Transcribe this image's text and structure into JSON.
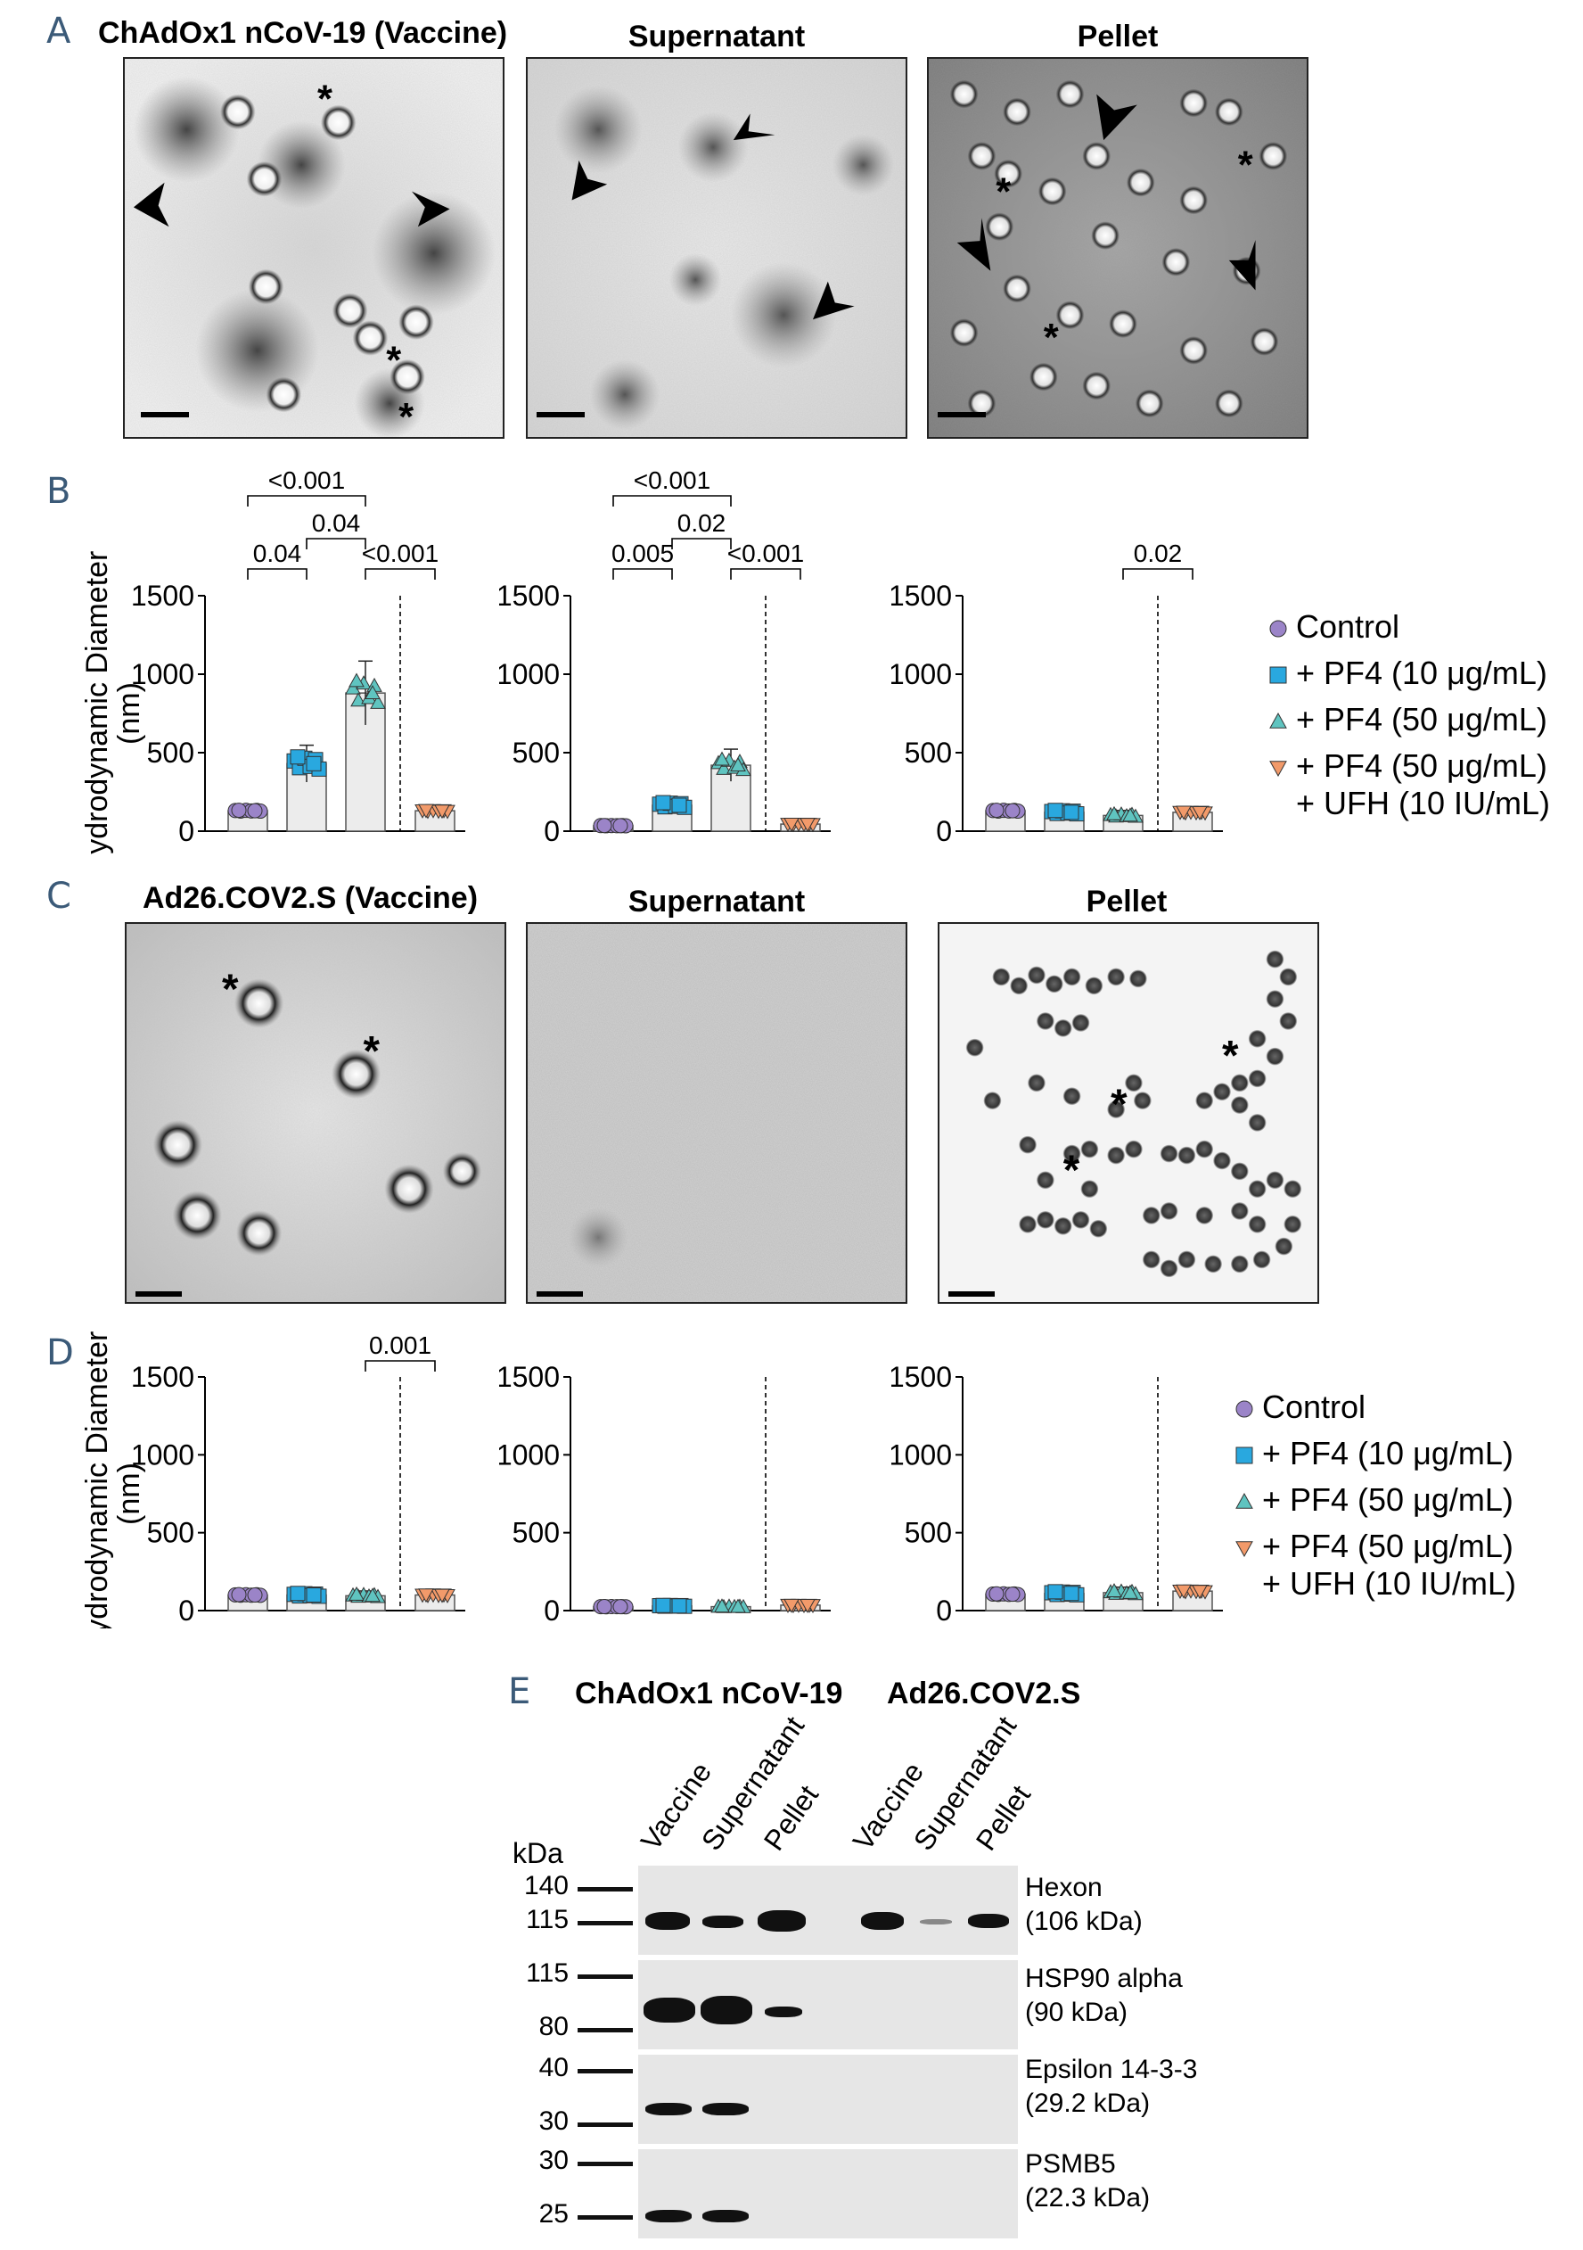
{
  "panels": {
    "A": {
      "letter": "A",
      "titles": [
        "ChAdOx1 nCoV-19 (Vaccine)",
        "Supernatant",
        "Pellet"
      ]
    },
    "B": {
      "letter": "B"
    },
    "C": {
      "letter": "C",
      "titles": [
        "Ad26.COV2.S (Vaccine)",
        "Supernatant",
        "Pellet"
      ]
    },
    "D": {
      "letter": "D"
    },
    "E": {
      "letter": "E",
      "groups": [
        "ChAdOx1 nCoV-19",
        "Ad26.COV2.S"
      ],
      "lanes": [
        "Vaccine",
        "Supernatant",
        "Pellet"
      ],
      "kda_label": "kDa",
      "blots": [
        {
          "markers": [
            "140",
            "115"
          ],
          "protein": "Hexon",
          "mass": "(106 kDa)"
        },
        {
          "markers": [
            "115",
            "80"
          ],
          "protein": "HSP90 alpha",
          "mass": "(90 kDa)"
        },
        {
          "markers": [
            "40",
            "30"
          ],
          "protein": "Epsilon 14-3-3",
          "mass": "(29.2 kDa)"
        },
        {
          "markers": [
            "30",
            "25"
          ],
          "protein": "PSMB5",
          "mass": "(22.3 kDa)"
        }
      ]
    }
  },
  "annotations": {
    "asterisk": "*"
  },
  "legend": {
    "entries": [
      {
        "label": "Control",
        "color": "#9b84c8",
        "marker": "circle"
      },
      {
        "label": "+ PF4 (10 μg/mL)",
        "color": "#29a8df",
        "marker": "square"
      },
      {
        "label": "+ PF4 (50 μg/mL)",
        "color": "#5fc4c0",
        "marker": "triangle"
      },
      {
        "label": "+ PF4 (50 μg/mL)",
        "label2": "+ UFH (10 IU/mL)",
        "color": "#f29a6a",
        "marker": "triangle-down"
      }
    ]
  },
  "chart_data": [
    {
      "id": "B-vaccine",
      "type": "bar",
      "ylabel": "Hydrodynamic Diameter (nm)",
      "ylim": [
        0,
        1500
      ],
      "yticks": [
        0,
        500,
        1000,
        1500
      ],
      "categories": [
        "Control",
        "+ PF4 (10 μg/mL)",
        "+ PF4 (50 μg/mL)",
        "+ PF4 (50 μg/mL) + UFH (10 IU/mL)"
      ],
      "values": [
        130,
        430,
        880,
        130
      ],
      "brackets": [
        {
          "from": 0,
          "to": 1,
          "label": "0.04"
        },
        {
          "from": 1,
          "to": 2,
          "label": "0.04"
        },
        {
          "from": 0,
          "to": 2,
          "label": "<0.001"
        },
        {
          "from": 2,
          "to": 3,
          "label": "<0.001"
        }
      ]
    },
    {
      "id": "B-supernatant",
      "type": "bar",
      "ylim": [
        0,
        1500
      ],
      "yticks": [
        0,
        500,
        1000,
        1500
      ],
      "categories": [
        "Control",
        "+ PF4 (10 μg/mL)",
        "+ PF4 (50 μg/mL)",
        "+ PF4 (50 μg/mL) + UFH (10 IU/mL)"
      ],
      "values": [
        35,
        165,
        420,
        45
      ],
      "brackets": [
        {
          "from": 0,
          "to": 1,
          "label": "0.005"
        },
        {
          "from": 1,
          "to": 2,
          "label": "0.02"
        },
        {
          "from": 0,
          "to": 2,
          "label": "<0.001"
        },
        {
          "from": 2,
          "to": 3,
          "label": "<0.001"
        }
      ]
    },
    {
      "id": "B-pellet",
      "type": "bar",
      "ylim": [
        0,
        1500
      ],
      "yticks": [
        0,
        500,
        1000,
        1500
      ],
      "categories": [
        "Control",
        "+ PF4 (10 μg/mL)",
        "+ PF4 (50 μg/mL)",
        "+ PF4 (50 μg/mL) + UFH (10 IU/mL)"
      ],
      "values": [
        130,
        120,
        100,
        120
      ],
      "brackets": [
        {
          "from": 2,
          "to": 3,
          "label": "0.02"
        }
      ]
    },
    {
      "id": "D-vaccine",
      "type": "bar",
      "ylabel": "Hydrodynamic Diameter (nm)",
      "ylim": [
        0,
        1500
      ],
      "yticks": [
        0,
        500,
        1000,
        1500
      ],
      "categories": [
        "Control",
        "+ PF4 (10 μg/mL)",
        "+ PF4 (50 μg/mL)",
        "+ PF4 (50 μg/mL) + UFH (10 IU/mL)"
      ],
      "values": [
        100,
        100,
        95,
        100
      ],
      "brackets": [
        {
          "from": 2,
          "to": 3,
          "label": "0.001"
        }
      ]
    },
    {
      "id": "D-supernatant",
      "type": "bar",
      "ylim": [
        0,
        1500
      ],
      "yticks": [
        0,
        500,
        1000,
        1500
      ],
      "categories": [
        "Control",
        "+ PF4 (10 μg/mL)",
        "+ PF4 (50 μg/mL)",
        "+ PF4 (50 μg/mL) + UFH (10 IU/mL)"
      ],
      "values": [
        25,
        30,
        25,
        35
      ],
      "brackets": []
    },
    {
      "id": "D-pellet",
      "type": "bar",
      "ylim": [
        0,
        1500
      ],
      "yticks": [
        0,
        500,
        1000,
        1500
      ],
      "categories": [
        "Control",
        "+ PF4 (10 μg/mL)",
        "+ PF4 (50 μg/mL)",
        "+ PF4 (50 μg/mL) + UFH (10 IU/mL)"
      ],
      "values": [
        105,
        110,
        115,
        125
      ],
      "brackets": []
    }
  ]
}
